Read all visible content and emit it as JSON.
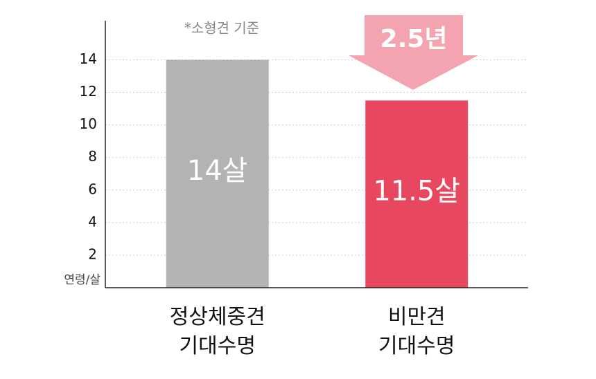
{
  "chart_data": {
    "type": "bar",
    "categories": [
      "정상체중견\n기대수명",
      "비만견\n기대수명"
    ],
    "values": [
      14,
      11.5
    ],
    "value_labels": [
      "14살",
      "11.5살"
    ],
    "colors": [
      "#b3b3b3",
      "#e8485f"
    ],
    "ylabel": "연령/살",
    "note": "*소형견 기준",
    "difference_label": "2.5년",
    "ylim": [
      0,
      16.4
    ],
    "yticks": [
      2,
      4,
      6,
      8,
      10,
      12,
      14
    ],
    "grid": true
  }
}
